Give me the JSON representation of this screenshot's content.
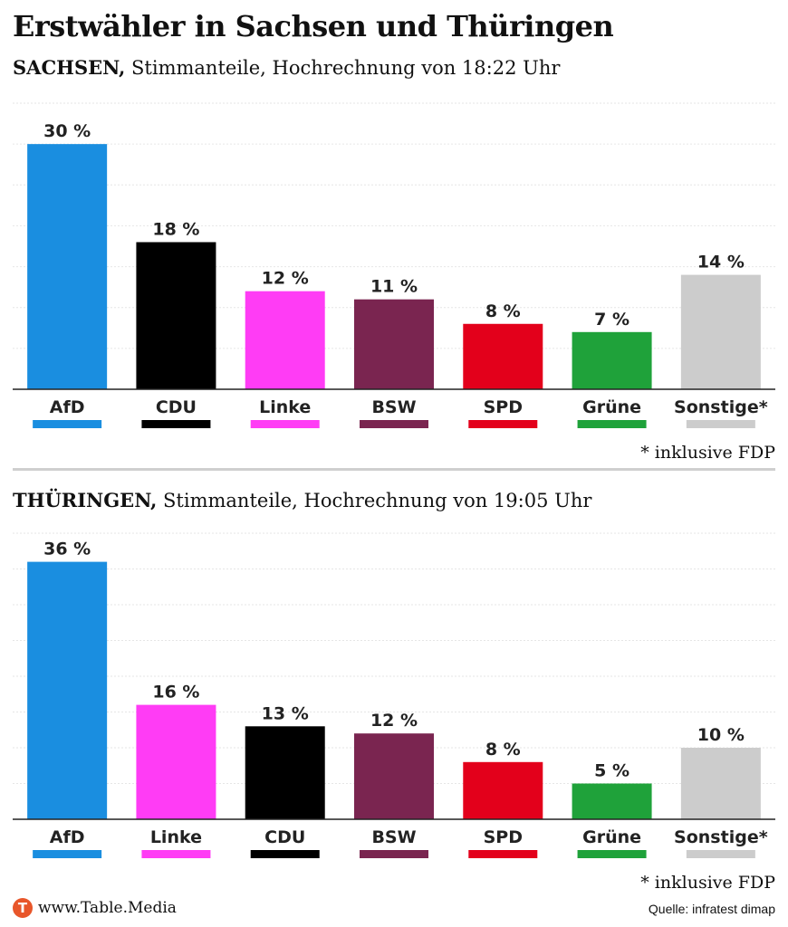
{
  "title": "Erstwähler in Sachsen und Thüringen",
  "footer": {
    "logo_letter": "T",
    "site": "www.Table.Media",
    "source": "Quelle: infratest dimap"
  },
  "chart_data": [
    {
      "type": "bar",
      "region": "SACHSEN,",
      "subtitle": "Stimmanteile, Hochrechnung von 18:22 Uhr",
      "categories": [
        "AfD",
        "CDU",
        "Linke",
        "BSW",
        "SPD",
        "Grüne",
        "Sonstige*"
      ],
      "values": [
        30,
        18,
        12,
        11,
        8,
        7,
        14
      ],
      "value_labels": [
        "30 %",
        "18 %",
        "12 %",
        "11 %",
        "8 %",
        "7 %",
        "14 %"
      ],
      "colors": [
        "#1a8ee0",
        "#000000",
        "#ff3cf5",
        "#7a2550",
        "#e3001b",
        "#1fa23a",
        "#cccccc"
      ],
      "ylim": [
        0,
        35
      ],
      "grid": true,
      "footnote": "*  inklusive FDP"
    },
    {
      "type": "bar",
      "region": "THÜRINGEN,",
      "subtitle": "Stimmanteile, Hochrechnung von 19:05 Uhr",
      "categories": [
        "AfD",
        "Linke",
        "CDU",
        "BSW",
        "SPD",
        "Grüne",
        "Sonstige*"
      ],
      "values": [
        36,
        16,
        13,
        12,
        8,
        5,
        10
      ],
      "value_labels": [
        "36 %",
        "16 %",
        "13 %",
        "12 %",
        "8 %",
        "5 %",
        "10 %"
      ],
      "colors": [
        "#1a8ee0",
        "#ff3cf5",
        "#000000",
        "#7a2550",
        "#e3001b",
        "#1fa23a",
        "#cccccc"
      ],
      "ylim": [
        0,
        40
      ],
      "grid": true,
      "footnote": "*  inklusive FDP"
    }
  ]
}
